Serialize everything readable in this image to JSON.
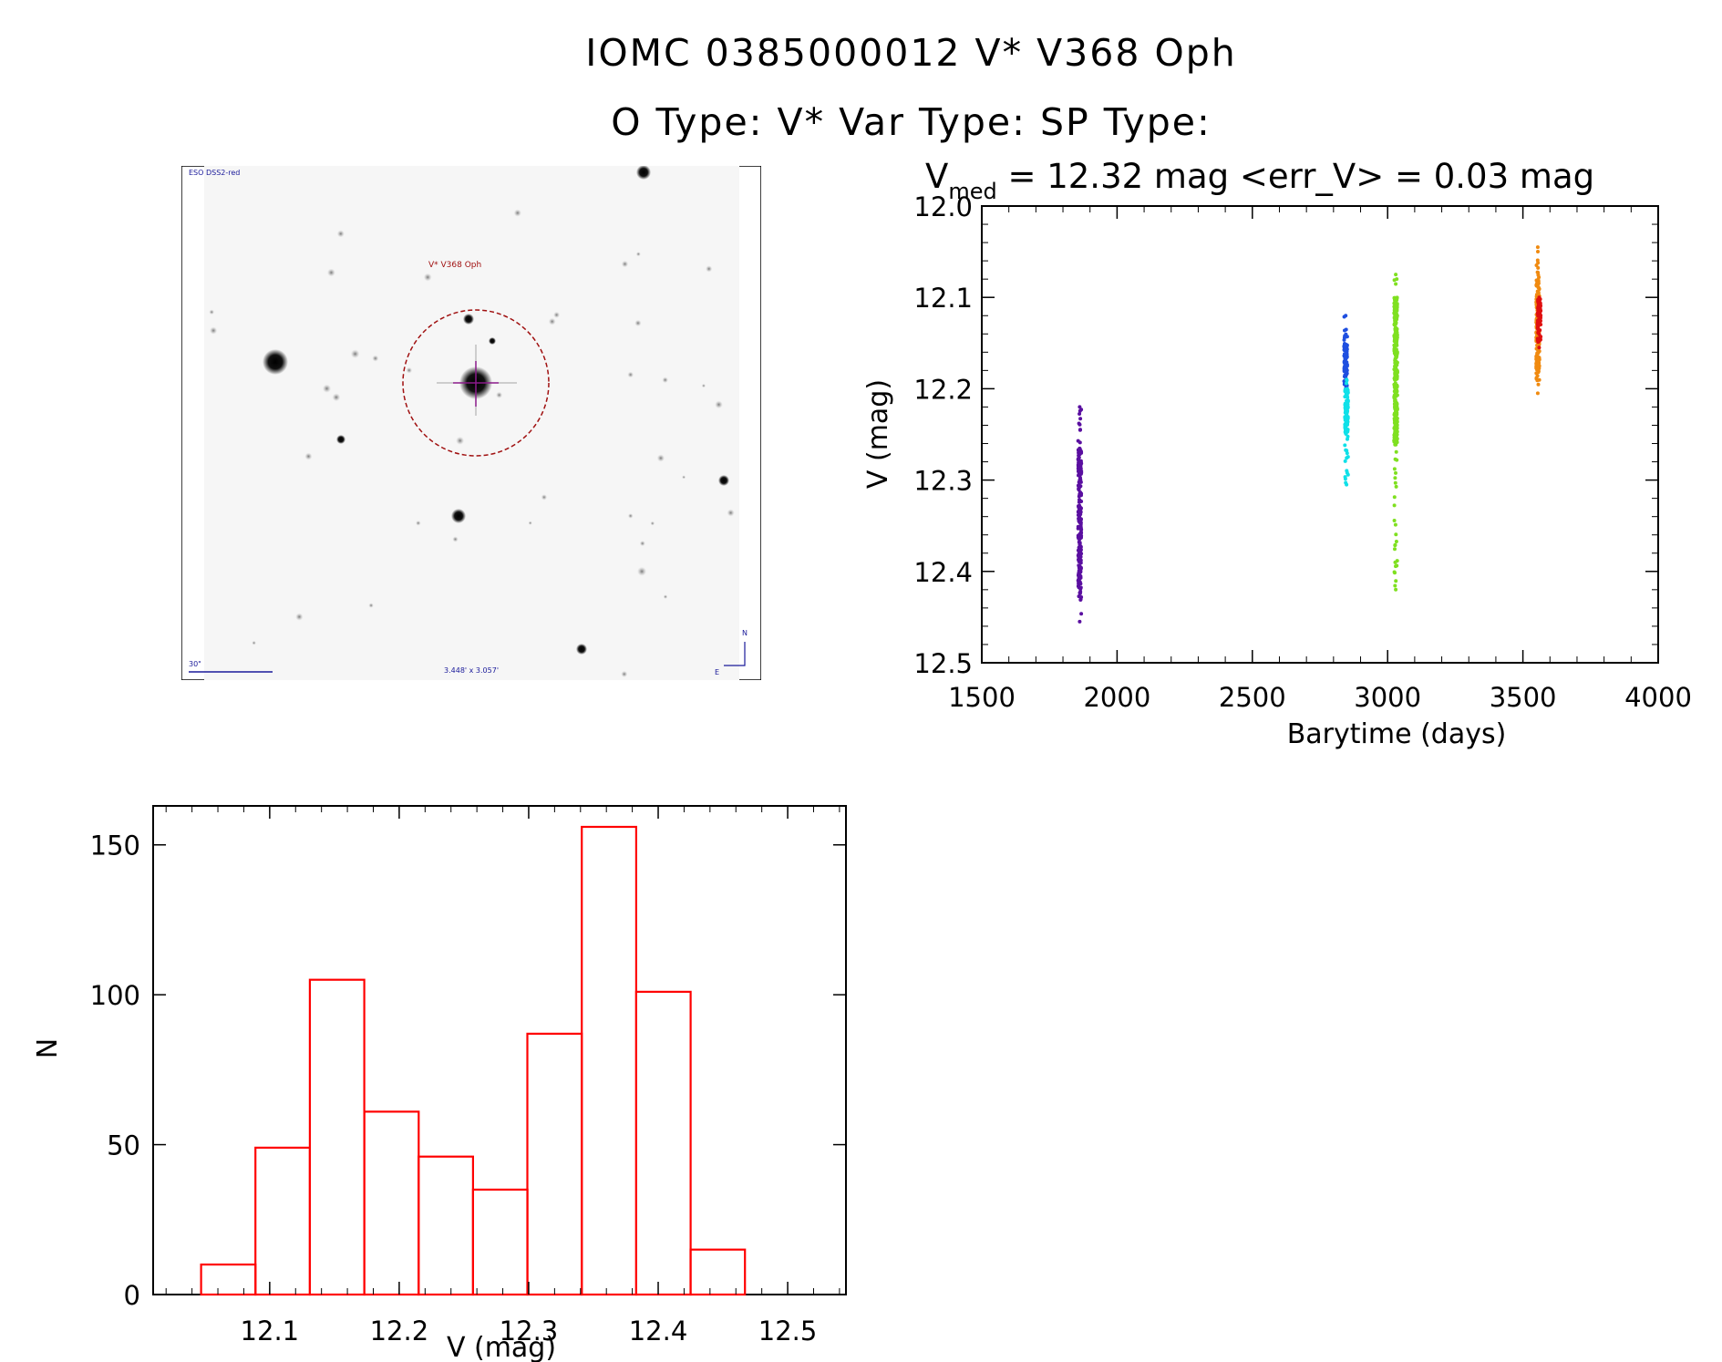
{
  "header": {
    "line1": "IOMC 0385000012   V* V368 Oph",
    "line2": "O Type: V*  Var Type:   SP Type:"
  },
  "finder": {
    "survey_label": "ESO DSS2-red",
    "object_label": "V* V368 Oph",
    "scale_label": "30\"",
    "fov_label": "3.448' x 3.057'",
    "north_label": "N",
    "east_label": "E",
    "colors": {
      "circle": "#a01010",
      "crosshair": "#8a1a8a",
      "labels": "#1a1a9a"
    }
  },
  "chart_data": [
    {
      "type": "scatter",
      "title_prefix": "V",
      "title_sub": "med",
      "title_rest": " = 12.32 mag <err_V> = 0.03 mag",
      "xlabel": "Barytime (days)",
      "ylabel": "V (mag)",
      "xlim": [
        1500,
        4000
      ],
      "ylim": [
        12.5,
        12.0
      ],
      "y_inverted": true,
      "x_ticks": [
        "1500",
        "2000",
        "2500",
        "3000",
        "3500",
        "4000"
      ],
      "y_ticks": [
        "12.0",
        "12.1",
        "12.2",
        "12.3",
        "12.4",
        "12.5"
      ],
      "series": [
        {
          "color": "#5a0fa0",
          "x": 1862,
          "y_range": [
            12.22,
            12.455
          ],
          "dense": [
            12.265,
            12.43
          ]
        },
        {
          "color": "#1f4fe0",
          "x": 2845,
          "y_range": [
            12.12,
            12.2
          ],
          "dense": [
            12.14,
            12.2
          ]
        },
        {
          "color": "#10e0e8",
          "x": 2848,
          "y_range": [
            12.19,
            12.305
          ],
          "dense": [
            12.2,
            12.25
          ]
        },
        {
          "color": "#7fe020",
          "x": 3030,
          "y_range": [
            12.075,
            12.42
          ],
          "dense": [
            12.1,
            12.26
          ]
        },
        {
          "color": "#f08a10",
          "x": 3555,
          "y_range": [
            12.045,
            12.205
          ],
          "dense": [
            12.08,
            12.18
          ]
        },
        {
          "color": "#e01010",
          "x": 3560,
          "y_range": [
            12.1,
            12.155
          ],
          "dense": [
            12.1,
            12.15
          ]
        }
      ]
    },
    {
      "type": "bar",
      "xlabel": "V (mag)",
      "ylabel": "N",
      "xlim": [
        12.01,
        12.545
      ],
      "ylim": [
        0,
        163
      ],
      "x_ticks": [
        "12.1",
        "12.2",
        "12.3",
        "12.4",
        "12.5"
      ],
      "y_ticks": [
        "0",
        "50",
        "100",
        "150"
      ],
      "bar_color": "#ff0000",
      "bin_edges": [
        12.047,
        12.089,
        12.131,
        12.173,
        12.215,
        12.257,
        12.299,
        12.341,
        12.383,
        12.425,
        12.467
      ],
      "values": [
        10,
        49,
        105,
        61,
        46,
        35,
        87,
        156,
        101,
        15
      ]
    }
  ]
}
